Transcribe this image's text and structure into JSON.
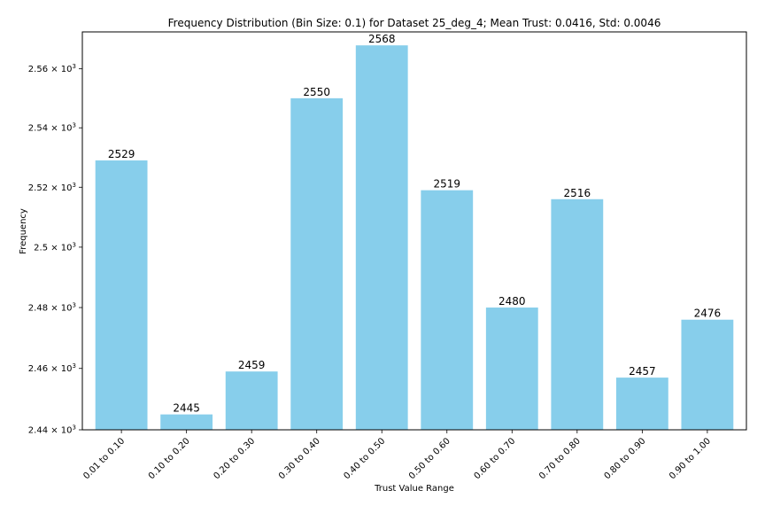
{
  "chart_data": {
    "type": "bar",
    "title": "Frequency Distribution (Bin Size: 0.1) for Dataset 25_deg_4; Mean Trust: 0.0416, Std: 0.0046",
    "xlabel": "Trust Value Range",
    "ylabel": "Frequency",
    "categories": [
      "0.01 to 0.10",
      "0.10 to 0.20",
      "0.20 to 0.30",
      "0.30 to 0.40",
      "0.40 to 0.50",
      "0.50 to 0.60",
      "0.60 to 0.70",
      "0.70 to 0.80",
      "0.80 to 0.90",
      "0.90 to 1.00"
    ],
    "values": [
      2529,
      2445,
      2459,
      2550,
      2568,
      2519,
      2480,
      2516,
      2457,
      2476
    ],
    "data_labels": [
      "2529",
      "2445",
      "2459",
      "2550",
      "2568",
      "2519",
      "2480",
      "2516",
      "2457",
      "2476"
    ],
    "ylim": [
      2440,
      2572.6
    ],
    "y_scale": "log",
    "yticks": [
      2440,
      2460,
      2480,
      2500,
      2520,
      2540,
      2560
    ],
    "ytick_labels": [
      {
        "mantissa": "2.44",
        "exp": "3"
      },
      {
        "mantissa": "2.46",
        "exp": "3"
      },
      {
        "mantissa": "2.48",
        "exp": "3"
      },
      {
        "mantissa": "2.5",
        "exp": "3"
      },
      {
        "mantissa": "2.52",
        "exp": "3"
      },
      {
        "mantissa": "2.54",
        "exp": "3"
      },
      {
        "mantissa": "2.56",
        "exp": "3"
      }
    ],
    "bar_color": "#87ceeb",
    "grid": false,
    "legend": "none"
  }
}
